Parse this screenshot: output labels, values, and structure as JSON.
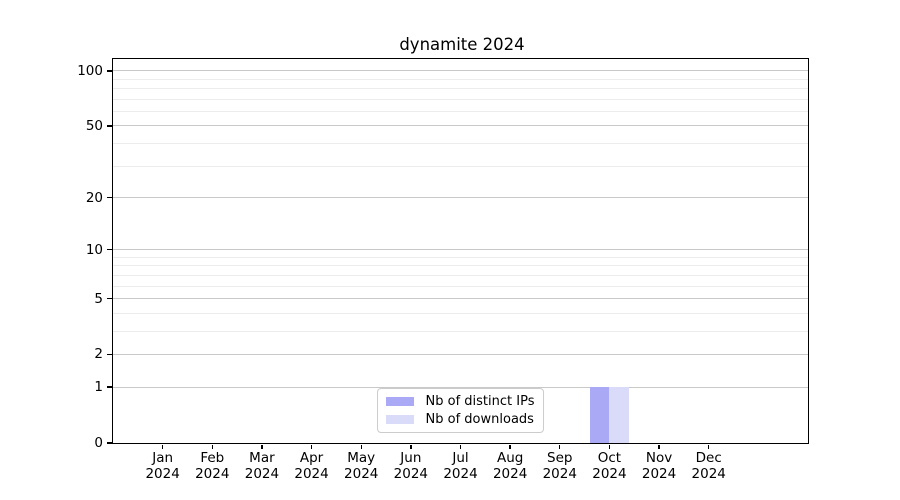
{
  "chart_data": {
    "type": "bar",
    "title": "dynamite 2024",
    "categories": [
      {
        "month": "Jan",
        "year": "2024"
      },
      {
        "month": "Feb",
        "year": "2024"
      },
      {
        "month": "Mar",
        "year": "2024"
      },
      {
        "month": "Apr",
        "year": "2024"
      },
      {
        "month": "May",
        "year": "2024"
      },
      {
        "month": "Jun",
        "year": "2024"
      },
      {
        "month": "Jul",
        "year": "2024"
      },
      {
        "month": "Aug",
        "year": "2024"
      },
      {
        "month": "Sep",
        "year": "2024"
      },
      {
        "month": "Oct",
        "year": "2024"
      },
      {
        "month": "Nov",
        "year": "2024"
      },
      {
        "month": "Dec",
        "year": "2024"
      }
    ],
    "series": [
      {
        "name": "Nb of distinct IPs",
        "color": "#a9a9f6",
        "values": [
          0,
          0,
          0,
          0,
          0,
          0,
          0,
          0,
          0,
          1,
          0,
          0
        ]
      },
      {
        "name": "Nb of downloads",
        "color": "#dadaf9",
        "values": [
          0,
          0,
          0,
          0,
          0,
          0,
          0,
          0,
          0,
          1,
          0,
          0
        ]
      }
    ],
    "y_scale": "log1p",
    "ylim": [
      0,
      116
    ],
    "y_major_ticks": [
      0,
      1,
      2,
      5,
      10,
      20,
      50,
      100
    ],
    "y_minor_ticks": [
      3,
      4,
      6,
      7,
      8,
      9,
      30,
      40,
      60,
      70,
      80,
      90
    ],
    "grid": "horizontal",
    "legend_position": "lower center",
    "bar_width_fraction": 0.4,
    "x_padding_intervals": 1
  }
}
